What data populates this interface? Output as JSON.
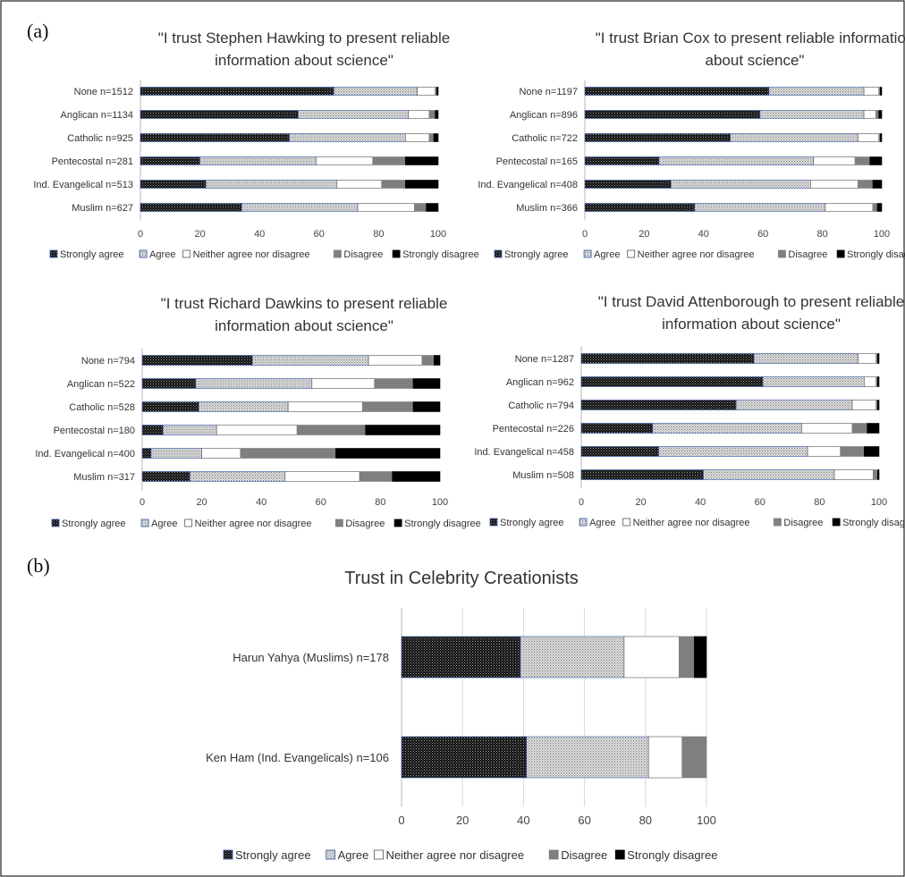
{
  "panel_labels": {
    "a": "(a)",
    "b": "(b)"
  },
  "segment_names": [
    "Strongly agree",
    "Agree",
    "Neither agree nor disagree",
    "Disagree",
    "Strongly disagree"
  ],
  "legend_style": {
    "fills": [
      "url(#patDark)",
      "url(#patDots)",
      "#ffffff",
      "#7f7f7f",
      "#000000"
    ],
    "strokes": [
      "#3355aa",
      "#3355aa",
      "#555555",
      "#7f7f7f",
      "#000000"
    ]
  },
  "chart_data": [
    {
      "type": "bar",
      "stacked": true,
      "orientation": "horizontal",
      "title": "\"I trust Stephen Hawking to present reliable information about science\"",
      "title_lines": [
        "\"I trust Stephen Hawking to present reliable",
        "information about science\""
      ],
      "categories": [
        "None n=1512",
        "Anglican n=1134",
        "Catholic n=925",
        "Pentecostal n=281",
        "Ind. Evangelical n=513",
        "Muslim n=627"
      ],
      "series": [
        {
          "name": "Strongly agree",
          "values": [
            65,
            53,
            50,
            20,
            22,
            34
          ]
        },
        {
          "name": "Agree",
          "values": [
            28,
            37,
            39,
            39,
            44,
            39
          ]
        },
        {
          "name": "Neither agree nor disagree",
          "values": [
            6,
            7,
            8,
            19,
            15,
            19
          ]
        },
        {
          "name": "Disagree",
          "values": [
            0.5,
            2,
            1.5,
            11,
            8,
            4
          ]
        },
        {
          "name": "Strongly disagree",
          "values": [
            0.5,
            1,
            1.5,
            11,
            11,
            4
          ]
        }
      ],
      "xlim": [
        0,
        100
      ],
      "xticks": [
        0,
        20,
        40,
        60,
        80,
        100
      ],
      "legend": [
        "Strongly agree",
        "Agree",
        "Neither agree nor disagree",
        "Disagree",
        "Strongly disagree"
      ],
      "legend_position": "bottom",
      "grid": false
    },
    {
      "type": "bar",
      "stacked": true,
      "orientation": "horizontal",
      "title": "\"I trust Brian Cox to present reliable information about science\"",
      "title_lines": [
        "\"I trust Brian Cox to present reliable information",
        "about science\""
      ],
      "categories": [
        "None n=1197",
        "Anglican n=896",
        "Catholic n=722",
        "Pentecostal n=165",
        "Ind. Evangelical n=408",
        "Muslim n=366"
      ],
      "series": [
        {
          "name": "Strongly agree",
          "values": [
            62,
            59,
            49,
            25,
            29,
            37
          ]
        },
        {
          "name": "Agree",
          "values": [
            32,
            35,
            43,
            52,
            47,
            44
          ]
        },
        {
          "name": "Neither agree nor disagree",
          "values": [
            5,
            4,
            7,
            14,
            16,
            16
          ]
        },
        {
          "name": "Disagree",
          "values": [
            0.5,
            1,
            0.5,
            5,
            5,
            1.5
          ]
        },
        {
          "name": "Strongly disagree",
          "values": [
            0.5,
            1,
            0.5,
            4,
            3,
            1.5
          ]
        }
      ],
      "xlim": [
        0,
        100
      ],
      "xticks": [
        0,
        20,
        40,
        60,
        80,
        100
      ],
      "legend": [
        "Strongly agree",
        "Agree",
        "Neither agree nor disagree",
        "Disagree",
        "Strongly disagree"
      ],
      "legend_position": "bottom",
      "grid": false
    },
    {
      "type": "bar",
      "stacked": true,
      "orientation": "horizontal",
      "title": "\"I trust Richard Dawkins to present reliable information about science\"",
      "title_lines": [
        "\"I trust Richard Dawkins to present reliable",
        "information about science\""
      ],
      "categories": [
        "None n=794",
        "Anglican n=522",
        "Catholic n=528",
        "Pentecostal n=180",
        "Ind. Evangelical n=400",
        "Muslim n=317"
      ],
      "series": [
        {
          "name": "Strongly agree",
          "values": [
            37,
            18,
            19,
            7,
            3,
            16
          ]
        },
        {
          "name": "Agree",
          "values": [
            39,
            39,
            30,
            18,
            17,
            32
          ]
        },
        {
          "name": "Neither agree nor disagree",
          "values": [
            18,
            21,
            25,
            27,
            13,
            25
          ]
        },
        {
          "name": "Disagree",
          "values": [
            4,
            13,
            17,
            23,
            32,
            11
          ]
        },
        {
          "name": "Strongly disagree",
          "values": [
            2,
            9,
            9,
            25,
            35,
            16
          ]
        }
      ],
      "xlim": [
        0,
        100
      ],
      "xticks": [
        0,
        20,
        40,
        60,
        80,
        100
      ],
      "legend": [
        "Strongly agree",
        "Agree",
        "Neither agree nor disagree",
        "Disagree",
        "Strongly disagree"
      ],
      "legend_position": "bottom",
      "grid": false
    },
    {
      "type": "bar",
      "stacked": true,
      "orientation": "horizontal",
      "title": "\"I trust David Attenborough to present reliable information about science\"",
      "title_lines": [
        "\"I trust David Attenborough to present reliable",
        "information about science\""
      ],
      "categories": [
        "None n=1287",
        "Anglican n=962",
        "Catholic n=794",
        "Pentecostal n=226",
        "Ind. Evangelical n=458",
        "Muslim n=508"
      ],
      "series": [
        {
          "name": "Strongly agree",
          "values": [
            58,
            61,
            52,
            24,
            26,
            41
          ]
        },
        {
          "name": "Agree",
          "values": [
            35,
            34,
            39,
            50,
            50,
            44
          ]
        },
        {
          "name": "Neither agree nor disagree",
          "values": [
            6,
            4,
            8,
            17,
            11,
            13
          ]
        },
        {
          "name": "Disagree",
          "values": [
            0.5,
            0.5,
            0.5,
            5,
            8,
            1.5
          ]
        },
        {
          "name": "Strongly disagree",
          "values": [
            0.5,
            0.5,
            0.5,
            4,
            5,
            0.5
          ]
        }
      ],
      "xlim": [
        0,
        100
      ],
      "xticks": [
        0,
        20,
        40,
        60,
        80,
        100
      ],
      "legend": [
        "Strongly agree",
        "Agree",
        "Neither agree nor disagree",
        "Disagree",
        "Strongly disagree"
      ],
      "legend_position": "bottom",
      "grid": false
    },
    {
      "type": "bar",
      "stacked": true,
      "orientation": "horizontal",
      "title": "Trust in Celebrity Creationists",
      "title_lines": [
        "Trust in Celebrity Creationists"
      ],
      "categories": [
        "Harun Yahya (Muslims) n=178",
        "Ken Ham (Ind. Evangelicals) n=106"
      ],
      "series": [
        {
          "name": "Strongly agree",
          "values": [
            39,
            41
          ]
        },
        {
          "name": "Agree",
          "values": [
            34,
            40
          ]
        },
        {
          "name": "Neither agree nor disagree",
          "values": [
            18,
            11
          ]
        },
        {
          "name": "Disagree",
          "values": [
            5,
            8
          ]
        },
        {
          "name": "Strongly disagree",
          "values": [
            4,
            0
          ]
        }
      ],
      "xlim": [
        0,
        100
      ],
      "xticks": [
        0,
        20,
        40,
        60,
        80,
        100
      ],
      "legend": [
        "Strongly agree",
        "Agree",
        "Neither agree nor disagree",
        "Disagree",
        "Strongly disagree"
      ],
      "legend_position": "bottom",
      "grid": true
    }
  ]
}
